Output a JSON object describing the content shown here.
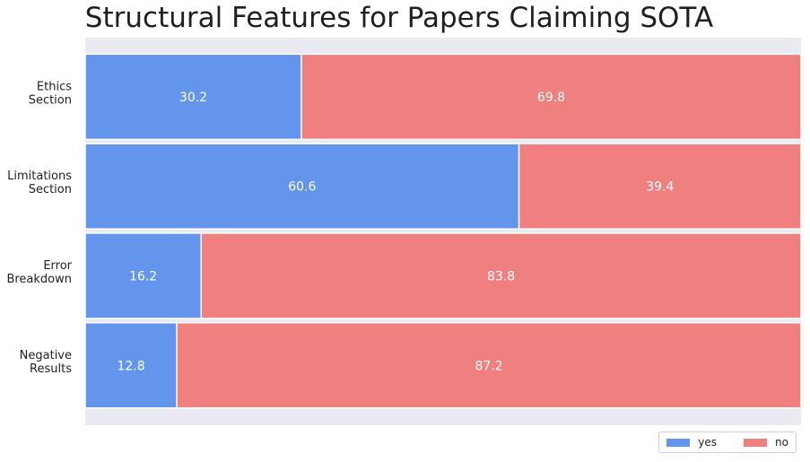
{
  "chart_data": {
    "type": "bar",
    "orientation": "horizontal",
    "stacked": true,
    "title": "Structural Features for Papers Claiming SOTA",
    "categories": [
      "Ethics\nSection",
      "Limitations\nSection",
      "Error\nBreakdown",
      "Negative\nResults"
    ],
    "series": [
      {
        "name": "yes",
        "values": [
          30.2,
          60.6,
          16.2,
          12.8
        ],
        "color": "#6495ed"
      },
      {
        "name": "no",
        "values": [
          69.8,
          39.4,
          83.8,
          87.2
        ],
        "color": "#f08080"
      }
    ],
    "xlim": [
      0,
      100
    ],
    "value_labels": true,
    "grid": false,
    "legend_position": "bottom-right",
    "background_color": "#eaeaf2"
  }
}
